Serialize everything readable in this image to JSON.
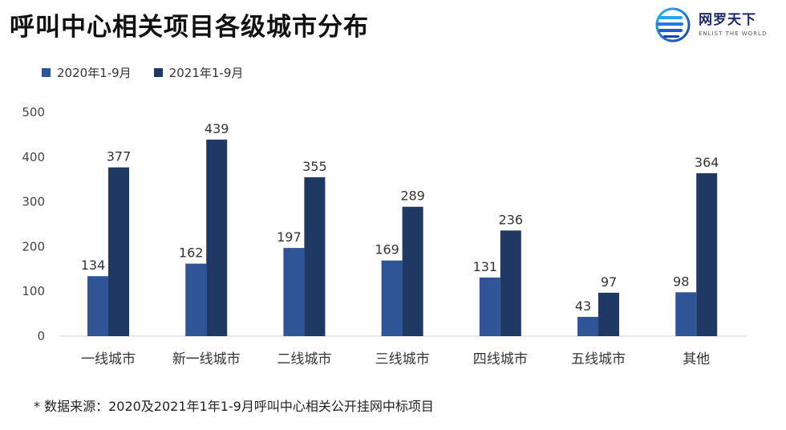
{
  "title": "呼叫中心相关项目各级城市分布",
  "logo": {
    "name_cn": "网罗天下",
    "name_en": "ENLIST THE WORLD"
  },
  "colors": {
    "series_2020": "#2f5597",
    "series_2021": "#1f3864"
  },
  "footnote": "* 数据来源：2020及2021年1年1-9月呼叫中心相关公开挂网中标项目",
  "chart_data": {
    "type": "bar",
    "title": "呼叫中心相关项目各级城市分布",
    "categories": [
      "一线城市",
      "新一线城市",
      "二线城市",
      "三线城市",
      "四线城市",
      "五线城市",
      "其他"
    ],
    "series": [
      {
        "name": "2020年1-9月",
        "values": [
          134,
          162,
          197,
          169,
          131,
          43,
          98
        ]
      },
      {
        "name": "2021年1-9月",
        "values": [
          377,
          439,
          355,
          289,
          236,
          97,
          364
        ]
      }
    ],
    "yticks": [
      "0",
      "100",
      "200",
      "300",
      "400",
      "500"
    ],
    "ylim": [
      0,
      500
    ],
    "xlabel": "",
    "ylabel": "",
    "legend": "top-left",
    "grid": false
  }
}
